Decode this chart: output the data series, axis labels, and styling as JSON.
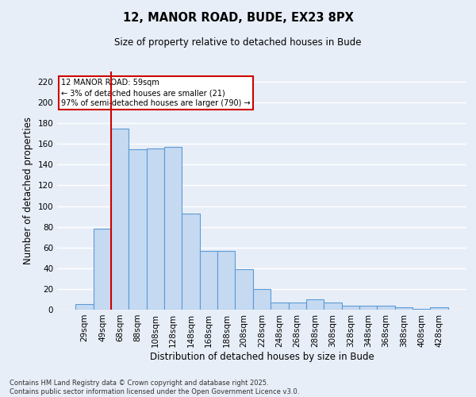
{
  "title1": "12, MANOR ROAD, BUDE, EX23 8PX",
  "title2": "Size of property relative to detached houses in Bude",
  "xlabel": "Distribution of detached houses by size in Bude",
  "ylabel": "Number of detached properties",
  "bar_labels": [
    "29sqm",
    "49sqm",
    "68sqm",
    "88sqm",
    "108sqm",
    "128sqm",
    "148sqm",
    "168sqm",
    "188sqm",
    "208sqm",
    "228sqm",
    "248sqm",
    "268sqm",
    "288sqm",
    "308sqm",
    "328sqm",
    "348sqm",
    "368sqm",
    "388sqm",
    "408sqm",
    "428sqm"
  ],
  "bar_values": [
    5,
    78,
    175,
    155,
    156,
    157,
    93,
    57,
    57,
    39,
    20,
    7,
    7,
    10,
    7,
    4,
    4,
    4,
    2,
    1,
    2
  ],
  "bar_color": "#c5d9f1",
  "bar_edge_color": "#5b9bd5",
  "vline_color": "#cc0000",
  "annotation_text": "12 MANOR ROAD: 59sqm\n← 3% of detached houses are smaller (21)\n97% of semi-detached houses are larger (790) →",
  "annotation_box_color": "#cc0000",
  "annotation_bg": "#ffffff",
  "ylim": [
    0,
    230
  ],
  "yticks": [
    0,
    20,
    40,
    60,
    80,
    100,
    120,
    140,
    160,
    180,
    200,
    220
  ],
  "background_color": "#e8eef8",
  "grid_color": "#ffffff",
  "footnote": "Contains HM Land Registry data © Crown copyright and database right 2025.\nContains public sector information licensed under the Open Government Licence v3.0."
}
